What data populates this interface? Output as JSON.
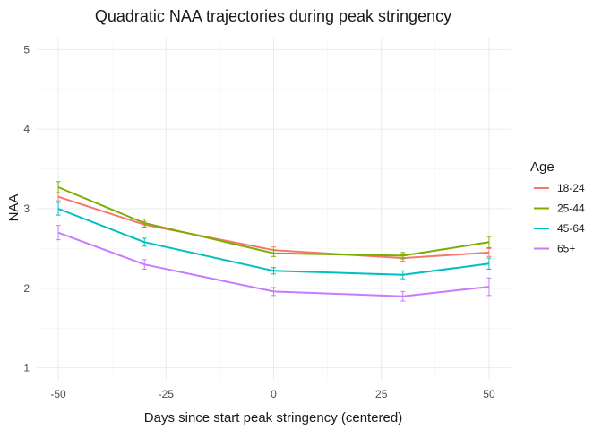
{
  "chart_data": {
    "type": "line",
    "title": "Quadratic NAA trajectories during peak stringency",
    "xlabel": "Days since start peak stringency (centered)",
    "ylabel": "NAA",
    "xlim": [
      -55,
      55
    ],
    "ylim": [
      0.85,
      5.15
    ],
    "xticks": [
      -50,
      -25,
      0,
      25,
      50
    ],
    "yticks": [
      1,
      2,
      3,
      4,
      5
    ],
    "grid": true,
    "legend_title": "Age",
    "legend_position": "right",
    "x": [
      -50,
      -30,
      0,
      30,
      50
    ],
    "series": [
      {
        "name": "18-24",
        "color": "#F8766D",
        "values": [
          3.15,
          2.8,
          2.48,
          2.38,
          2.45
        ],
        "err": [
          0.05,
          0.04,
          0.04,
          0.04,
          0.05
        ]
      },
      {
        "name": "25-44",
        "color": "#7CAE00",
        "values": [
          3.27,
          2.82,
          2.44,
          2.41,
          2.58
        ],
        "err": [
          0.07,
          0.05,
          0.04,
          0.04,
          0.07
        ]
      },
      {
        "name": "45-64",
        "color": "#00BFC4",
        "values": [
          3.0,
          2.58,
          2.22,
          2.17,
          2.31
        ],
        "err": [
          0.08,
          0.05,
          0.04,
          0.05,
          0.07
        ]
      },
      {
        "name": "65+",
        "color": "#C77CFF",
        "values": [
          2.7,
          2.3,
          1.96,
          1.9,
          2.02
        ],
        "err": [
          0.09,
          0.06,
          0.05,
          0.06,
          0.11
        ]
      }
    ]
  }
}
